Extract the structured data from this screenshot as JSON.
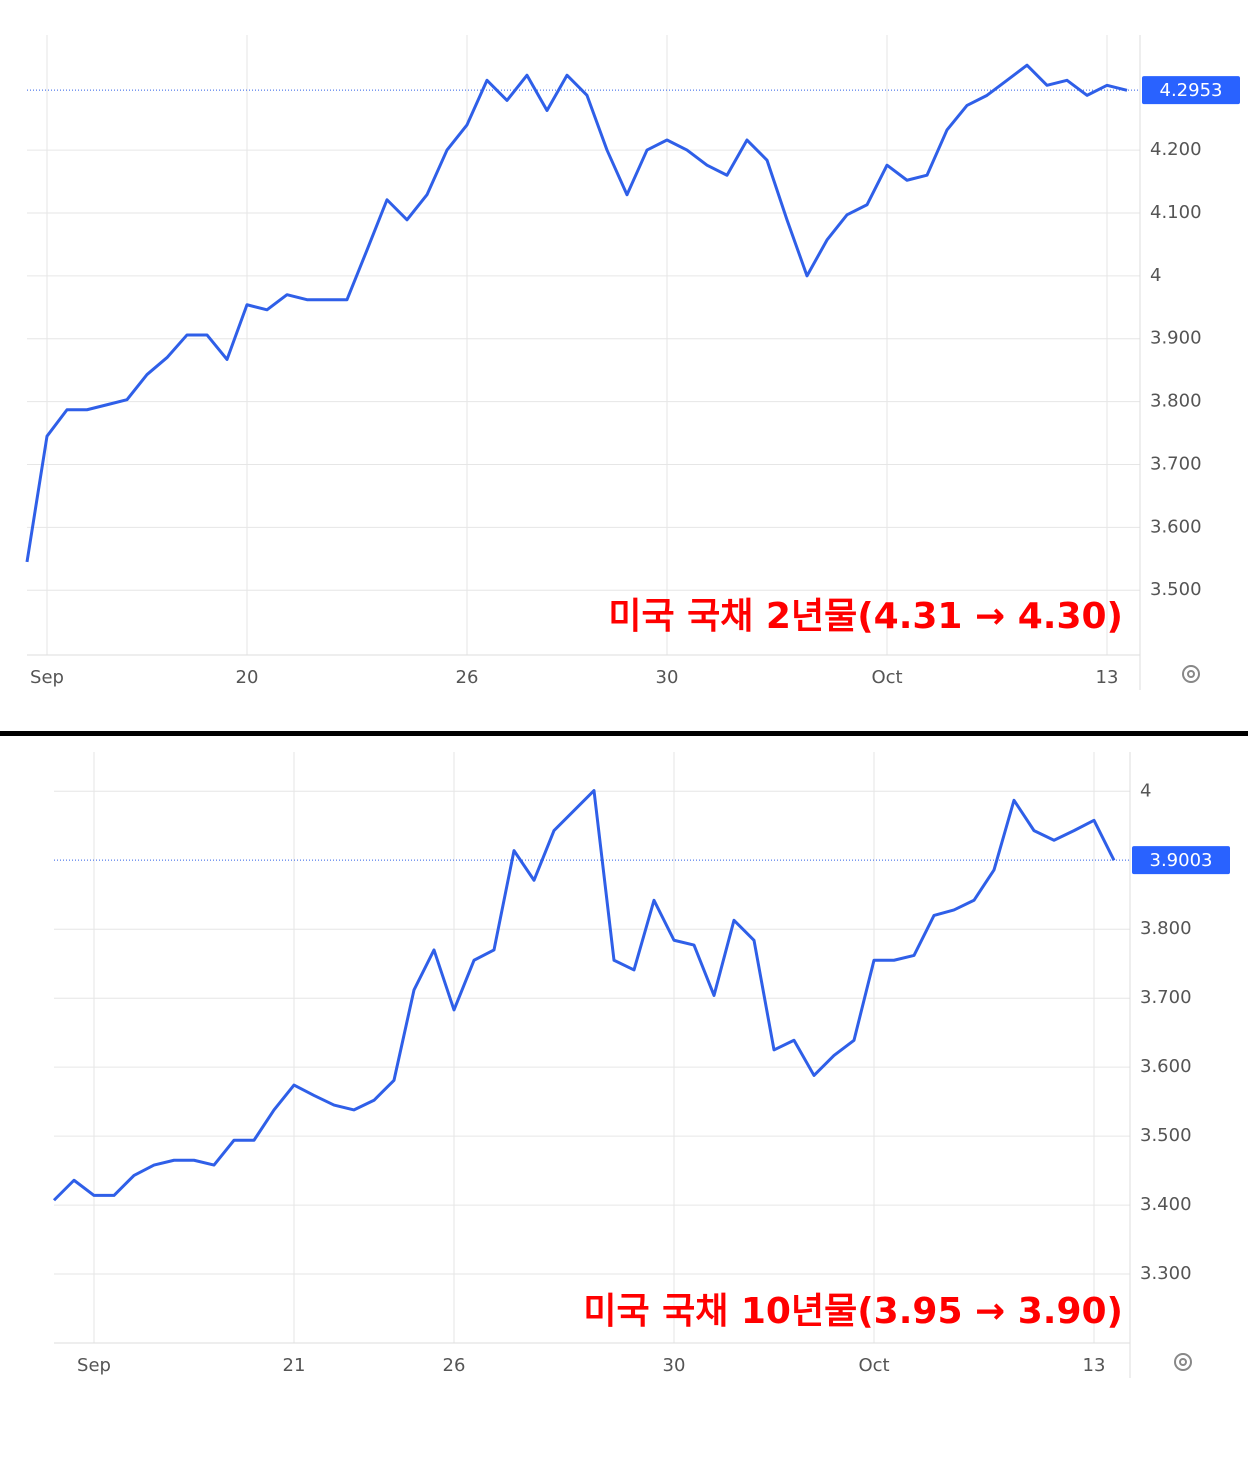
{
  "chart_data": [
    {
      "type": "line",
      "annotation": "미국 국채 2년물(4.31 → 4.30)",
      "color": "#2f5fe8",
      "categories": [
        null,
        "Sep",
        null,
        null,
        null,
        null,
        null,
        null,
        null,
        null,
        null,
        "20",
        null,
        null,
        null,
        null,
        null,
        null,
        null,
        null,
        null,
        null,
        "26",
        null,
        null,
        null,
        null,
        null,
        null,
        null,
        null,
        null,
        "30",
        null,
        null,
        null,
        null,
        null,
        null,
        null,
        null,
        null,
        null,
        "Oct",
        null,
        null,
        null,
        null,
        null,
        null,
        null,
        null,
        null,
        null,
        "13",
        null
      ],
      "values": [
        3.545,
        3.745,
        3.787,
        3.787,
        3.795,
        3.803,
        3.843,
        3.87,
        3.906,
        3.906,
        3.867,
        3.954,
        3.946,
        3.97,
        3.962,
        3.962,
        3.962,
        4.041,
        4.121,
        4.089,
        4.129,
        4.2,
        4.24,
        4.311,
        4.279,
        4.319,
        4.263,
        4.319,
        4.287,
        4.2,
        4.129,
        4.2,
        4.216,
        4.2,
        4.176,
        4.16,
        4.216,
        4.184,
        4.089,
        4.0,
        4.057,
        4.097,
        4.113,
        4.176,
        4.152,
        4.16,
        4.232,
        4.271,
        4.287,
        4.311,
        4.335,
        4.303,
        4.311,
        4.287,
        4.303,
        4.295
      ],
      "last_value": 4.2953,
      "ylim": [
        3.397,
        4.383
      ],
      "yticks": [
        {
          "value": 4.2,
          "label": "4.200"
        },
        {
          "value": 4.1,
          "label": "4.100"
        },
        4,
        {
          "value": 3.9,
          "label": "3.900"
        },
        {
          "value": 3.8,
          "label": "3.800"
        },
        {
          "value": 3.7,
          "label": "3.700"
        },
        {
          "value": 3.6,
          "label": "3.600"
        },
        {
          "value": 3.5,
          "label": "3.500"
        }
      ],
      "grid": true
    },
    {
      "type": "line",
      "annotation": "미국 국채 10년물(3.95 → 3.90)",
      "color": "#2f5fe8",
      "categories": [
        null,
        null,
        "Sep",
        null,
        null,
        null,
        null,
        null,
        null,
        null,
        null,
        null,
        "21",
        null,
        null,
        null,
        null,
        null,
        null,
        null,
        "26",
        null,
        null,
        null,
        null,
        null,
        null,
        null,
        null,
        null,
        null,
        "30",
        null,
        null,
        null,
        null,
        null,
        null,
        null,
        null,
        null,
        "Oct",
        null,
        null,
        null,
        null,
        null,
        null,
        null,
        null,
        null,
        null,
        "13",
        null
      ],
      "values": [
        3.407,
        3.436,
        3.414,
        3.414,
        3.443,
        3.458,
        3.465,
        3.465,
        3.458,
        3.494,
        3.494,
        3.538,
        3.574,
        3.559,
        3.545,
        3.538,
        3.552,
        3.581,
        3.712,
        3.77,
        3.683,
        3.755,
        3.77,
        3.914,
        3.871,
        3.943,
        3.972,
        4.001,
        3.755,
        3.741,
        3.842,
        3.784,
        3.777,
        3.704,
        3.813,
        3.784,
        3.625,
        3.639,
        3.588,
        3.617,
        3.639,
        3.755,
        3.755,
        3.762,
        3.82,
        3.828,
        3.842,
        3.886,
        3.987,
        3.943,
        3.929,
        3.943,
        3.958,
        3.9
      ],
      "last_value": 3.9003,
      "ylim": [
        3.2,
        4.057
      ],
      "yticks": [
        4,
        {
          "value": 3.8,
          "label": "3.800"
        },
        {
          "value": 3.7,
          "label": "3.700"
        },
        {
          "value": 3.6,
          "label": "3.600"
        },
        {
          "value": 3.5,
          "label": "3.500"
        },
        {
          "value": 3.4,
          "label": "3.400"
        },
        {
          "value": 3.3,
          "label": "3.300"
        }
      ],
      "grid": true
    }
  ]
}
